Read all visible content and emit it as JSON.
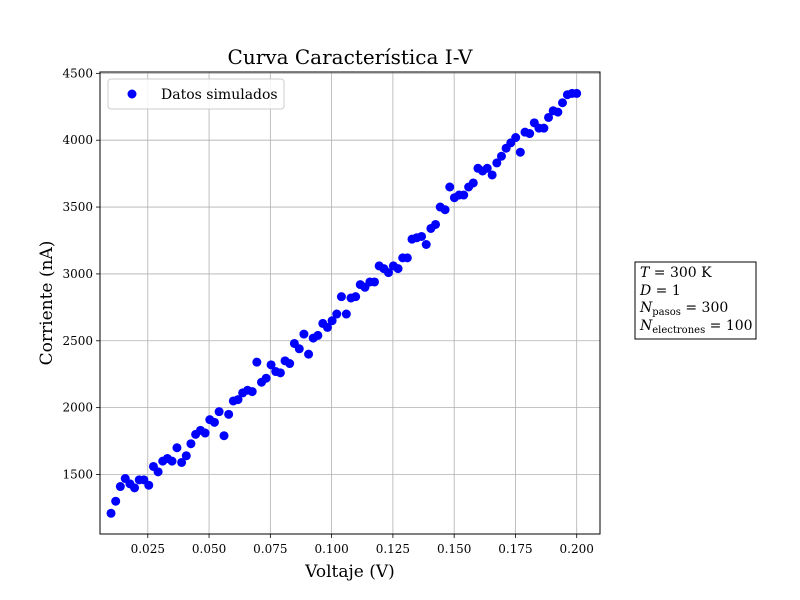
{
  "chart_data": {
    "type": "scatter",
    "title": "Curva Característica I-V",
    "xlabel": "Voltaje (V)",
    "ylabel": "Corriente (nA)",
    "xlim": [
      0.0055,
      0.2095
    ],
    "ylim": [
      1055,
      4510
    ],
    "xticks": [
      "0.025",
      "0.050",
      "0.075",
      "0.100",
      "0.125",
      "0.150",
      "0.175",
      "0.200"
    ],
    "xtick_values": [
      0.025,
      0.05,
      0.075,
      0.1,
      0.125,
      0.15,
      0.175,
      0.2
    ],
    "yticks": [
      "1500",
      "2000",
      "2500",
      "3000",
      "3500",
      "4000",
      "4500"
    ],
    "ytick_values": [
      1500,
      2000,
      2500,
      3000,
      3500,
      4000,
      4500
    ],
    "grid": true,
    "legend_position": "upper-left",
    "series": [
      {
        "name": "Datos simulados",
        "color": "#0000ff",
        "marker": "circle",
        "x": [
          0.01,
          0.0119,
          0.0138,
          0.0158,
          0.0177,
          0.0196,
          0.0215,
          0.0234,
          0.0254,
          0.0273,
          0.0292,
          0.0311,
          0.033,
          0.0349,
          0.0369,
          0.0388,
          0.0407,
          0.0426,
          0.0445,
          0.0465,
          0.0484,
          0.0503,
          0.0522,
          0.0541,
          0.0561,
          0.058,
          0.0599,
          0.0618,
          0.0637,
          0.0657,
          0.0676,
          0.0695,
          0.0714,
          0.0733,
          0.0753,
          0.0772,
          0.0791,
          0.081,
          0.0829,
          0.0848,
          0.0868,
          0.0887,
          0.0906,
          0.0925,
          0.0944,
          0.0964,
          0.0983,
          0.1002,
          0.1021,
          0.104,
          0.106,
          0.1079,
          0.1098,
          0.1117,
          0.1136,
          0.1156,
          0.1175,
          0.1194,
          0.1213,
          0.1232,
          0.1252,
          0.1271,
          0.129,
          0.1309,
          0.1328,
          0.1347,
          0.1367,
          0.1386,
          0.1405,
          0.1424,
          0.1443,
          0.1463,
          0.1482,
          0.1501,
          0.152,
          0.1539,
          0.1559,
          0.1578,
          0.1597,
          0.1616,
          0.1635,
          0.1655,
          0.1674,
          0.1693,
          0.1712,
          0.1731,
          0.1751,
          0.177,
          0.1789,
          0.1808,
          0.1827,
          0.1846,
          0.1866,
          0.1885,
          0.1904,
          0.1923,
          0.1942,
          0.1962,
          0.1981,
          0.2
        ],
        "y": [
          1210,
          1300,
          1410,
          1470,
          1430,
          1400,
          1460,
          1460,
          1420,
          1560,
          1520,
          1600,
          1620,
          1600,
          1700,
          1590,
          1640,
          1730,
          1800,
          1830,
          1810,
          1910,
          1890,
          1970,
          1790,
          1950,
          2050,
          2060,
          2110,
          2130,
          2120,
          2340,
          2190,
          2220,
          2320,
          2270,
          2260,
          2350,
          2330,
          2480,
          2440,
          2550,
          2400,
          2520,
          2540,
          2630,
          2600,
          2650,
          2700,
          2830,
          2700,
          2820,
          2830,
          2920,
          2900,
          2940,
          2940,
          3060,
          3040,
          3010,
          3060,
          3040,
          3120,
          3120,
          3260,
          3270,
          3280,
          3220,
          3340,
          3370,
          3500,
          3480,
          3650,
          3570,
          3590,
          3590,
          3650,
          3680,
          3790,
          3770,
          3790,
          3740,
          3830,
          3880,
          3940,
          3980,
          4020,
          3910,
          4060,
          4050,
          4130,
          4090,
          4090,
          4170,
          4220,
          4210,
          4280,
          4340,
          4350,
          4350
        ]
      }
    ],
    "annotation_box": {
      "lines": [
        "T = 300 K",
        "D = 1",
        "N_pasos = 300",
        "N_electrones = 100"
      ]
    }
  },
  "annotation": {
    "t_var": "T",
    "t_value": " = 300 K",
    "d_var": "D",
    "d_value": " = 1",
    "npasos_var": "N",
    "npasos_sub": "pasos",
    "npasos_value": " = 300",
    "nelec_var": "N",
    "nelec_sub": "electrones",
    "nelec_value": " = 100"
  }
}
